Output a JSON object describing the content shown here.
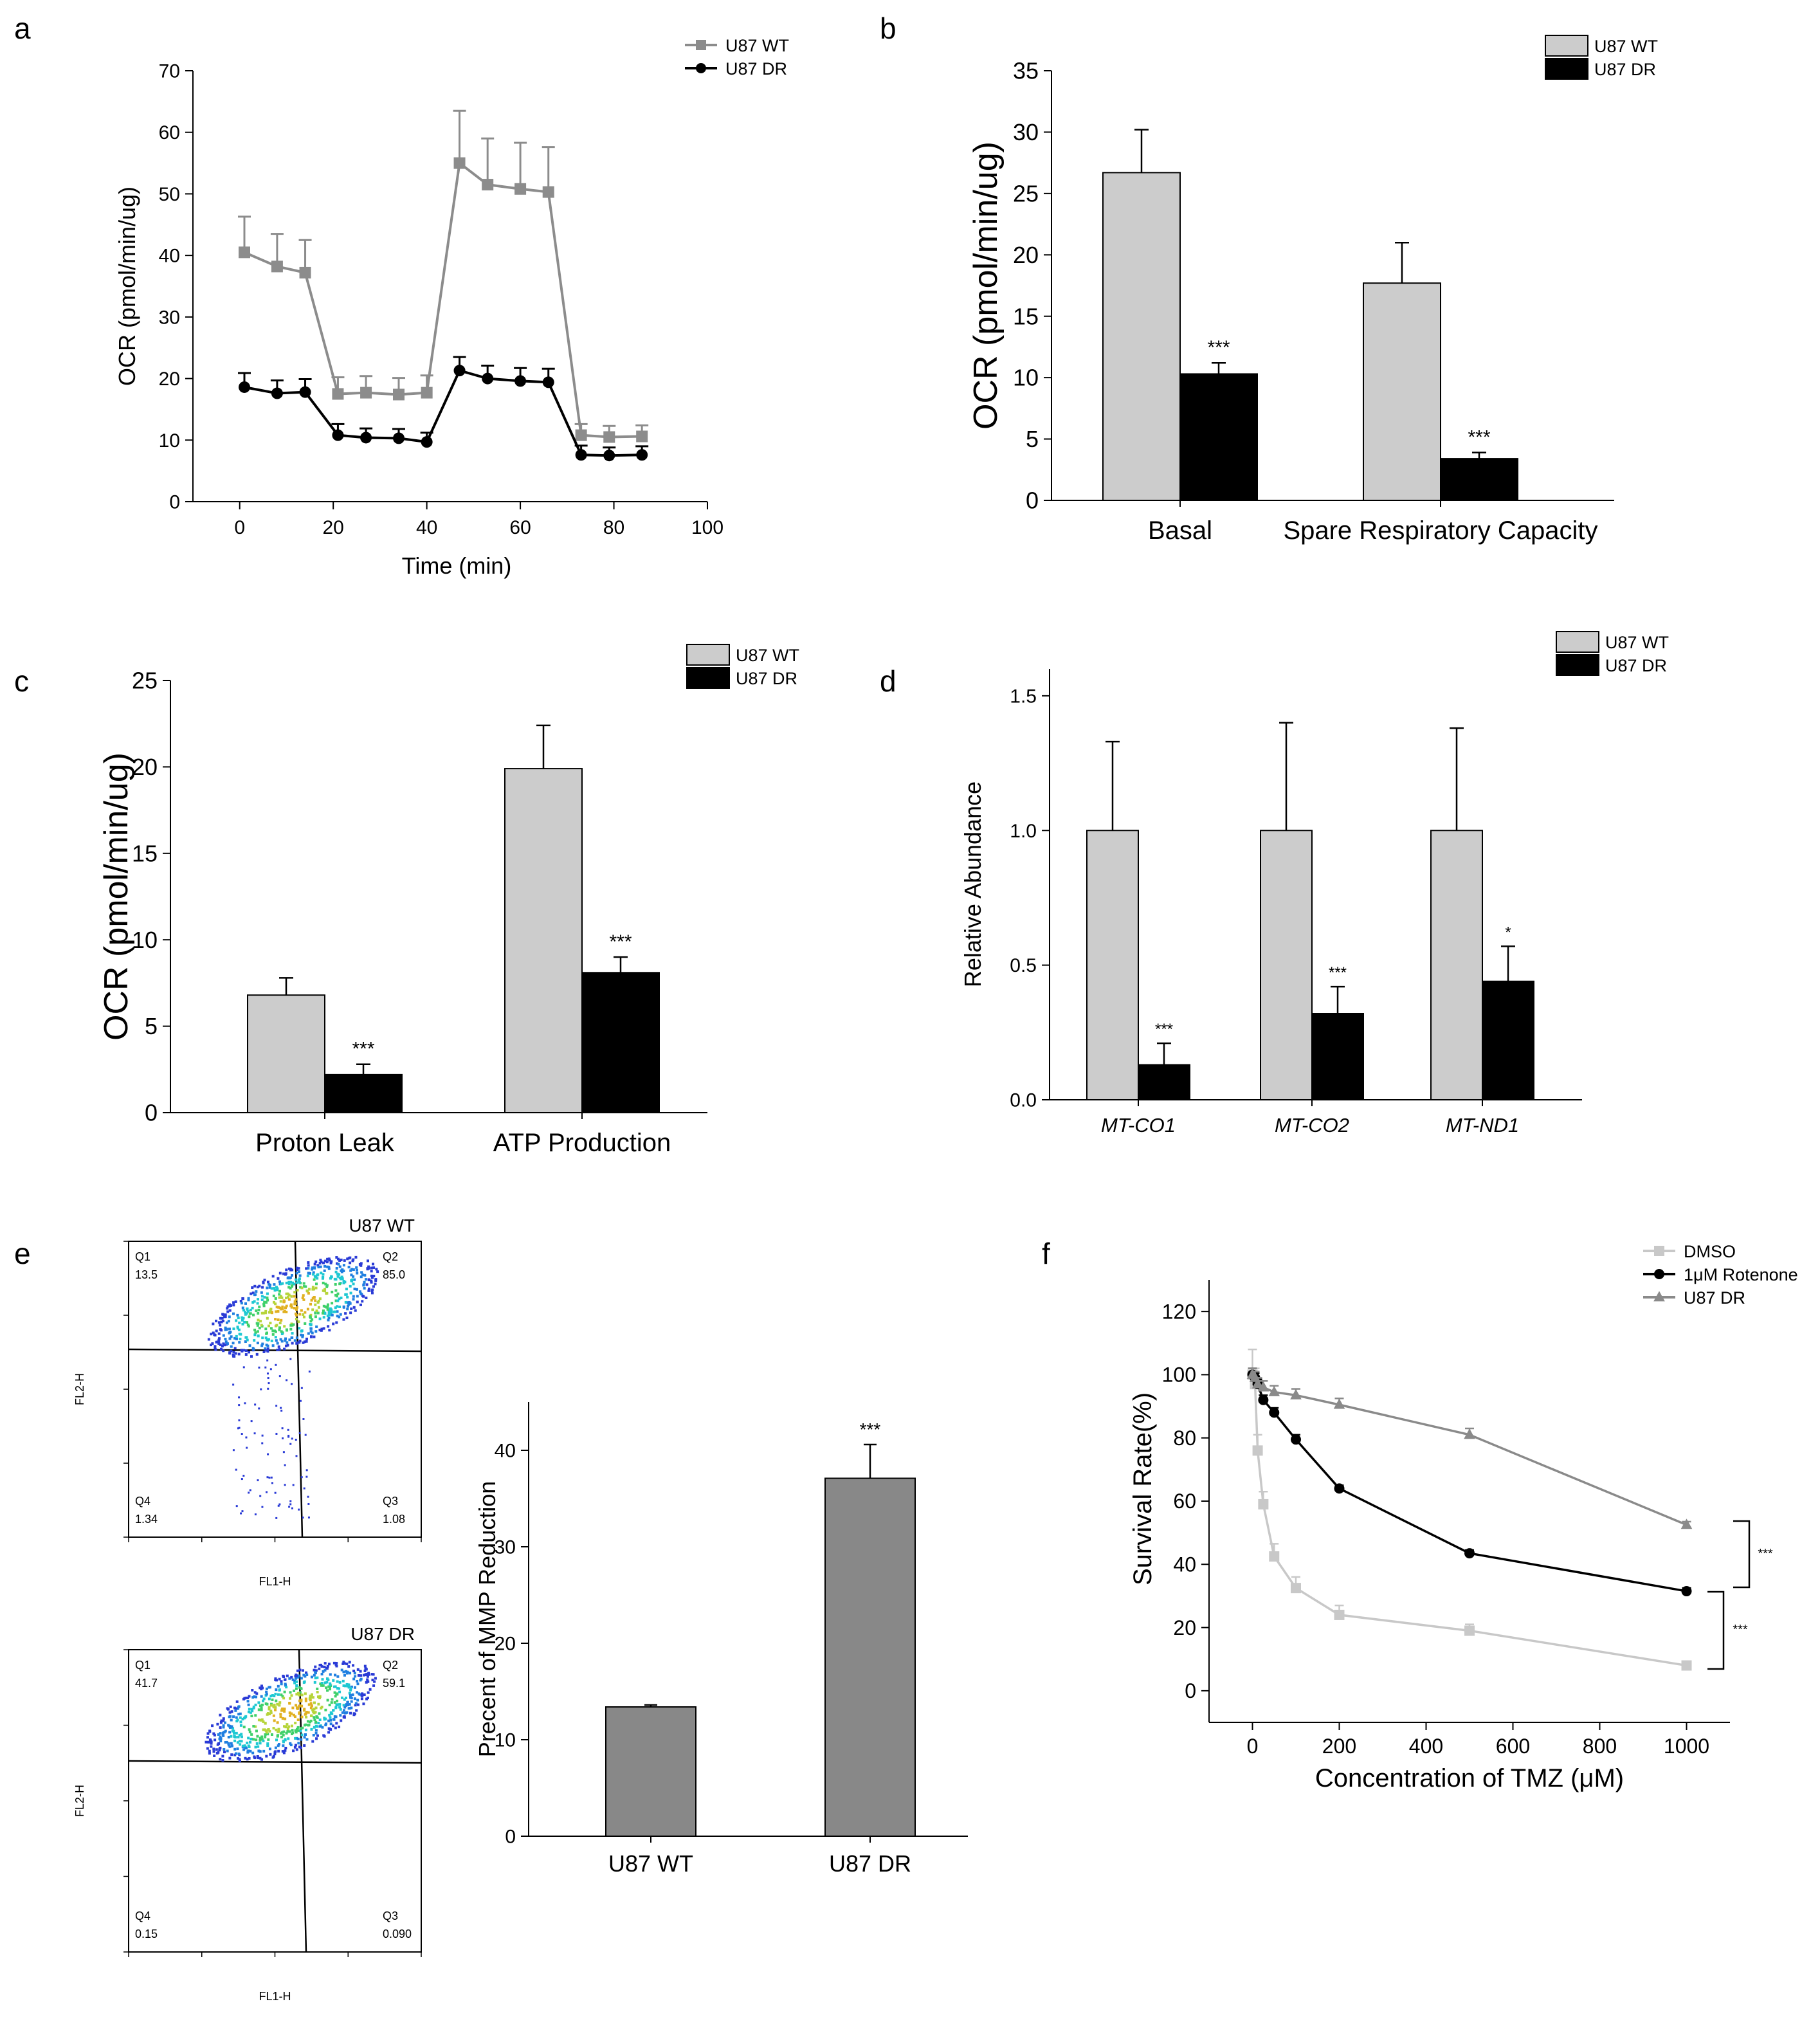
{
  "figure": {
    "panel_labels": [
      "a",
      "b",
      "c",
      "d",
      "e",
      "f"
    ],
    "colors": {
      "wt_grey": "#8c8c8c",
      "dr_black": "#000000",
      "bar_light": "#cccccc",
      "bar_dark": "#000000",
      "bar_mid": "#888888",
      "dmso_light": "#c8c8c8",
      "rot_black": "#000000",
      "dr_grey": "#8a8a8a"
    }
  },
  "chart_data": [
    {
      "panel": "a",
      "type": "line",
      "xlabel": "Time (min)",
      "ylabel": "OCR (pmol/min/ug)",
      "xlim": [
        -10,
        100
      ],
      "ylim": [
        0,
        70
      ],
      "xticks": [
        0,
        20,
        40,
        60,
        80,
        100
      ],
      "yticks": [
        0,
        10,
        20,
        30,
        40,
        50,
        60,
        70
      ],
      "x": [
        1,
        8,
        14,
        21,
        27,
        34,
        40,
        47,
        53,
        60,
        66,
        73,
        79,
        86
      ],
      "series": [
        {
          "name": "U87 WT",
          "marker": "square",
          "values": [
            40.5,
            38.2,
            37.2,
            17.5,
            17.7,
            17.4,
            17.7,
            55.0,
            51.5,
            50.8,
            50.3,
            10.8,
            10.5,
            10.6
          ],
          "errors": [
            5.8,
            5.3,
            5.3,
            2.7,
            2.7,
            2.7,
            2.8,
            8.5,
            7.5,
            7.5,
            7.3,
            1.8,
            1.8,
            1.8
          ]
        },
        {
          "name": "U87 DR",
          "marker": "circle",
          "values": [
            18.6,
            17.6,
            17.8,
            10.8,
            10.4,
            10.3,
            9.7,
            21.3,
            20.0,
            19.6,
            19.4,
            7.6,
            7.5,
            7.6
          ],
          "errors": [
            2.3,
            2.1,
            2.1,
            1.8,
            1.5,
            1.5,
            1.5,
            2.2,
            2.1,
            2.1,
            2.2,
            1.5,
            1.3,
            1.4
          ]
        }
      ]
    },
    {
      "panel": "b",
      "type": "bar",
      "ylabel": "OCR (pmol/min/ug)",
      "ylim": [
        0,
        35
      ],
      "yticks": [
        0,
        5,
        10,
        15,
        20,
        25,
        30,
        35
      ],
      "categories": [
        "Basal",
        "Spare Respiratory Capacity"
      ],
      "series": [
        {
          "name": "U87 WT",
          "values": [
            26.7,
            17.7
          ],
          "errors": [
            3.5,
            3.3
          ]
        },
        {
          "name": "U87 DR",
          "values": [
            10.3,
            3.4
          ],
          "errors": [
            0.9,
            0.5
          ]
        }
      ],
      "annotations": [
        "***",
        "***"
      ]
    },
    {
      "panel": "c",
      "type": "bar",
      "ylabel": "OCR (pmol/min/ug)",
      "ylim": [
        0,
        25
      ],
      "yticks": [
        0,
        5,
        10,
        15,
        20,
        25
      ],
      "categories": [
        "Proton Leak",
        "ATP Production"
      ],
      "series": [
        {
          "name": "U87 WT",
          "values": [
            6.8,
            19.9
          ],
          "errors": [
            1.0,
            2.5
          ]
        },
        {
          "name": "U87 DR",
          "values": [
            2.2,
            8.1
          ],
          "errors": [
            0.6,
            0.9
          ]
        }
      ],
      "annotations": [
        "***",
        "***"
      ]
    },
    {
      "panel": "d",
      "type": "bar",
      "ylabel": "Relative Abundance",
      "ylim": [
        0,
        1.6
      ],
      "yticks": [
        "0.0",
        "0.5",
        "1.0",
        "1.5"
      ],
      "categories": [
        "MT-CO1",
        "MT-CO2",
        "MT-ND1"
      ],
      "series": [
        {
          "name": "U87 WT",
          "values": [
            1.0,
            1.0,
            1.0
          ],
          "errors": [
            0.33,
            0.4,
            0.38
          ]
        },
        {
          "name": "U87 DR",
          "values": [
            0.13,
            0.32,
            0.44
          ],
          "errors": [
            0.08,
            0.1,
            0.13
          ]
        }
      ],
      "annotations": [
        "***",
        "***",
        "*"
      ]
    },
    {
      "panel": "e",
      "type": "bar",
      "ylabel": "Precent of MMP Reduction",
      "ylim": [
        0,
        45
      ],
      "yticks": [
        0,
        10,
        20,
        30,
        40
      ],
      "categories": [
        "U87 WT",
        "U87 DR"
      ],
      "values": [
        13.4,
        37.1
      ],
      "errors": [
        0.2,
        3.5
      ],
      "annotations": [
        "",
        "***"
      ]
    },
    {
      "panel": "f",
      "type": "line",
      "xlabel": "Concentration of TMZ (μM)",
      "ylabel": "Survival Rate(%)",
      "xlim": [
        -100,
        1100
      ],
      "ylim": [
        -10,
        130
      ],
      "xticks": [
        0,
        200,
        400,
        600,
        800,
        1000
      ],
      "yticks": [
        0,
        20,
        40,
        60,
        80,
        100,
        120
      ],
      "series": [
        {
          "name": "DMSO",
          "marker": "square",
          "x": [
            0,
            6,
            12,
            25,
            50,
            100,
            200,
            500,
            1000
          ],
          "values": [
            100,
            97,
            76,
            59,
            42.5,
            32.5,
            24,
            19,
            8
          ],
          "errors": [
            8,
            5,
            5,
            4,
            4,
            3.5,
            3,
            2,
            1
          ]
        },
        {
          "name": "1μM Rotenone",
          "marker": "circle",
          "x": [
            0,
            6,
            12,
            25,
            50,
            100,
            200,
            500,
            1000
          ],
          "values": [
            100,
            99,
            97,
            92,
            88,
            79.5,
            64,
            43.5,
            31.5
          ],
          "errors": [
            2,
            1.5,
            1.5,
            1.5,
            1.5,
            1.5,
            1,
            1,
            1
          ]
        },
        {
          "name": "U87 DR",
          "marker": "triangle",
          "x": [
            0,
            6,
            12,
            25,
            50,
            100,
            200,
            500,
            1000
          ],
          "values": [
            100,
            99,
            97,
            96,
            94.5,
            93.5,
            90.5,
            81,
            52.5
          ],
          "errors": [
            2,
            2,
            2,
            2,
            2,
            2,
            2,
            2,
            1
          ]
        }
      ],
      "annotations": [
        "***",
        "***"
      ]
    }
  ],
  "flow": [
    {
      "title": "U87 WT",
      "q1": "Q1",
      "q1v": "13.5",
      "q2": "Q2",
      "q2v": "85.0",
      "q3": "Q3",
      "q3v": "1.08",
      "q4": "Q4",
      "q4v": "1.34",
      "xlabel": "FL1-H",
      "ylabel": "FL2-H"
    },
    {
      "title": "U87 DR",
      "q1": "Q1",
      "q1v": "41.7",
      "q2": "Q2",
      "q2v": "59.1",
      "q3": "Q3",
      "q3v": "0.090",
      "q4": "Q4",
      "q4v": "0.15",
      "xlabel": "FL1-H",
      "ylabel": "FL2-H"
    }
  ]
}
